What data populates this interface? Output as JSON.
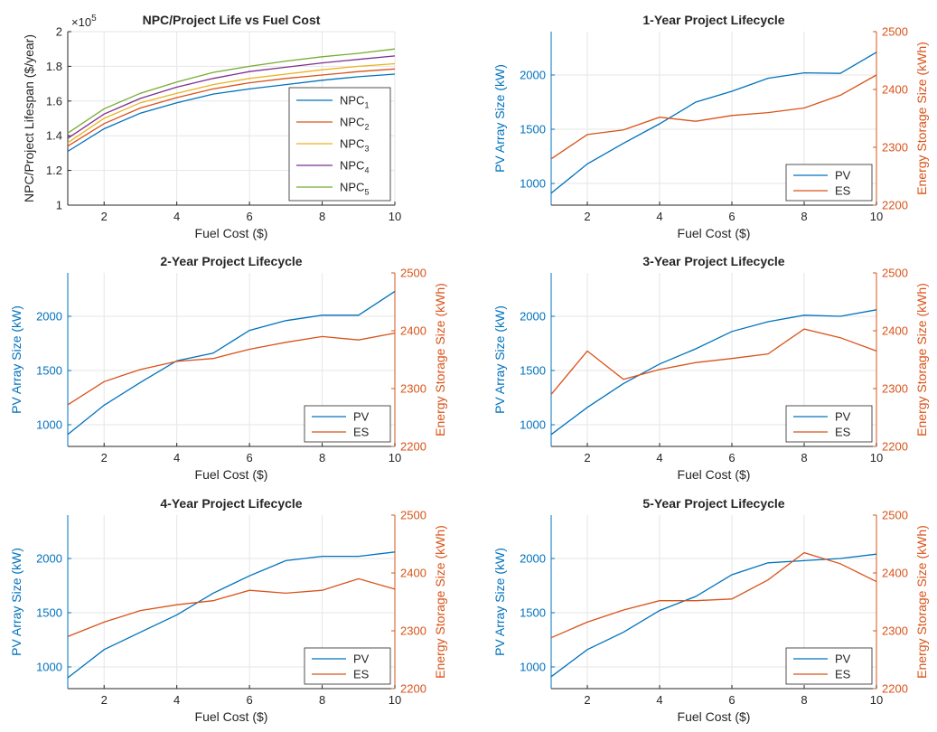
{
  "colors": {
    "pv": "#0072BD",
    "es": "#D95319",
    "npc": [
      "#0072BD",
      "#D95319",
      "#EDB120",
      "#7E2F8E",
      "#77AC30"
    ],
    "axis": "#262626",
    "grid": "#e6e6e6"
  },
  "chart_data": [
    {
      "type": "line",
      "title": "NPC/Project Life vs Fuel Cost",
      "xlabel": "Fuel Cost ($)",
      "ylabel": "NPC/Project Lifespan ($/year)",
      "exponent_label": "×10",
      "exponent_power": "5",
      "xlim": [
        1,
        10
      ],
      "ylim": [
        1,
        2
      ],
      "xticks": [
        2,
        4,
        6,
        8,
        10
      ],
      "yticks": [
        1,
        1.2,
        1.4,
        1.6,
        1.8,
        2
      ],
      "ytick_labels": [
        "1",
        "1.2",
        "1.4",
        "1.6",
        "1.8",
        "2"
      ],
      "grid": true,
      "legend_position": "bottom-right",
      "x": [
        1,
        2,
        3,
        4,
        5,
        6,
        7,
        8,
        9,
        10
      ],
      "series": [
        {
          "name": "NPC",
          "sub": "1",
          "values": [
            1.31,
            1.44,
            1.53,
            1.59,
            1.64,
            1.67,
            1.695,
            1.72,
            1.74,
            1.755
          ]
        },
        {
          "name": "NPC",
          "sub": "2",
          "values": [
            1.34,
            1.47,
            1.56,
            1.62,
            1.67,
            1.705,
            1.73,
            1.75,
            1.77,
            1.785
          ]
        },
        {
          "name": "NPC",
          "sub": "3",
          "values": [
            1.36,
            1.5,
            1.59,
            1.645,
            1.695,
            1.73,
            1.755,
            1.78,
            1.8,
            1.815
          ]
        },
        {
          "name": "NPC",
          "sub": "4",
          "values": [
            1.385,
            1.525,
            1.615,
            1.68,
            1.73,
            1.77,
            1.795,
            1.82,
            1.84,
            1.86
          ]
        },
        {
          "name": "NPC",
          "sub": "5",
          "values": [
            1.415,
            1.555,
            1.645,
            1.71,
            1.765,
            1.8,
            1.83,
            1.855,
            1.875,
            1.9
          ]
        }
      ]
    },
    {
      "type": "line",
      "title": "1-Year Project Lifecycle",
      "xlabel": "Fuel Cost ($)",
      "ylabel_left": "PV Array Size (kW)",
      "ylabel_right": "Energy Storage Size (kWh)",
      "xlim": [
        1,
        10
      ],
      "ylim_left": [
        800,
        2400
      ],
      "ylim_right": [
        2200,
        2500
      ],
      "xticks": [
        2,
        4,
        6,
        8,
        10
      ],
      "yticks_left": [
        1000,
        1500,
        2000
      ],
      "yticks_right": [
        2200,
        2300,
        2400,
        2500
      ],
      "grid": true,
      "legend_position": "bottom-right",
      "x": [
        1,
        2,
        3,
        4,
        5,
        6,
        7,
        8,
        9,
        10
      ],
      "series": [
        {
          "name": "PV",
          "axis": "left",
          "values": [
            910,
            1180,
            1370,
            1550,
            1750,
            1850,
            1970,
            2020,
            2015,
            2210
          ]
        },
        {
          "name": "ES",
          "axis": "right",
          "values": [
            2280,
            2322,
            2330,
            2352,
            2345,
            2355,
            2360,
            2368,
            2390,
            2425
          ]
        }
      ]
    },
    {
      "type": "line",
      "title": "2-Year Project Lifecycle",
      "xlabel": "Fuel Cost ($)",
      "ylabel_left": "PV Array Size (kW)",
      "ylabel_right": "Energy Storage Size (kWh)",
      "xlim": [
        1,
        10
      ],
      "ylim_left": [
        800,
        2400
      ],
      "ylim_right": [
        2200,
        2500
      ],
      "xticks": [
        2,
        4,
        6,
        8,
        10
      ],
      "yticks_left": [
        1000,
        1500,
        2000
      ],
      "yticks_right": [
        2200,
        2300,
        2400,
        2500
      ],
      "grid": true,
      "legend_position": "bottom-right",
      "x": [
        1,
        2,
        3,
        4,
        5,
        6,
        7,
        8,
        9,
        10
      ],
      "series": [
        {
          "name": "PV",
          "axis": "left",
          "values": [
            910,
            1180,
            1390,
            1590,
            1660,
            1870,
            1960,
            2010,
            2010,
            2230
          ]
        },
        {
          "name": "ES",
          "axis": "right",
          "values": [
            2272,
            2312,
            2333,
            2347,
            2352,
            2368,
            2380,
            2390,
            2384,
            2396
          ]
        }
      ]
    },
    {
      "type": "line",
      "title": "3-Year Project Lifecycle",
      "xlabel": "Fuel Cost ($)",
      "ylabel_left": "PV Array Size (kW)",
      "ylabel_right": "Energy Storage Size (kWh)",
      "xlim": [
        1,
        10
      ],
      "ylim_left": [
        800,
        2400
      ],
      "ylim_right": [
        2200,
        2500
      ],
      "xticks": [
        2,
        4,
        6,
        8,
        10
      ],
      "yticks_left": [
        1000,
        1500,
        2000
      ],
      "yticks_right": [
        2200,
        2300,
        2400,
        2500
      ],
      "grid": true,
      "legend_position": "bottom-right",
      "x": [
        1,
        2,
        3,
        4,
        5,
        6,
        7,
        8,
        9,
        10
      ],
      "series": [
        {
          "name": "PV",
          "axis": "left",
          "values": [
            910,
            1160,
            1380,
            1560,
            1700,
            1860,
            1950,
            2010,
            2000,
            2060
          ]
        },
        {
          "name": "ES",
          "axis": "right",
          "values": [
            2290,
            2365,
            2316,
            2333,
            2345,
            2352,
            2360,
            2403,
            2388,
            2365
          ]
        }
      ]
    },
    {
      "type": "line",
      "title": "4-Year Project Lifecycle",
      "xlabel": "Fuel Cost ($)",
      "ylabel_left": "PV Array Size (kW)",
      "ylabel_right": "Energy Storage Size (kWh)",
      "xlim": [
        1,
        10
      ],
      "ylim_left": [
        800,
        2400
      ],
      "ylim_right": [
        2200,
        2500
      ],
      "xticks": [
        2,
        4,
        6,
        8,
        10
      ],
      "yticks_left": [
        1000,
        1500,
        2000
      ],
      "yticks_right": [
        2200,
        2300,
        2400,
        2500
      ],
      "grid": true,
      "legend_position": "bottom-right",
      "x": [
        1,
        2,
        3,
        4,
        5,
        6,
        7,
        8,
        9,
        10
      ],
      "series": [
        {
          "name": "PV",
          "axis": "left",
          "values": [
            900,
            1160,
            1320,
            1480,
            1680,
            1840,
            1980,
            2020,
            2020,
            2060
          ]
        },
        {
          "name": "ES",
          "axis": "right",
          "values": [
            2290,
            2315,
            2335,
            2345,
            2352,
            2370,
            2365,
            2370,
            2390,
            2372
          ]
        }
      ]
    },
    {
      "type": "line",
      "title": "5-Year Project Lifecycle",
      "xlabel": "Fuel Cost ($)",
      "ylabel_left": "PV Array Size (kW)",
      "ylabel_right": "Energy Storage Size (kWh)",
      "xlim": [
        1,
        10
      ],
      "ylim_left": [
        800,
        2400
      ],
      "ylim_right": [
        2200,
        2500
      ],
      "xticks": [
        2,
        4,
        6,
        8,
        10
      ],
      "yticks_left": [
        1000,
        1500,
        2000
      ],
      "yticks_right": [
        2200,
        2300,
        2400,
        2500
      ],
      "grid": true,
      "legend_position": "bottom-right",
      "x": [
        1,
        2,
        3,
        4,
        5,
        6,
        7,
        8,
        9,
        10
      ],
      "series": [
        {
          "name": "PV",
          "axis": "left",
          "values": [
            910,
            1160,
            1320,
            1520,
            1650,
            1850,
            1960,
            1980,
            2000,
            2040
          ]
        },
        {
          "name": "ES",
          "axis": "right",
          "values": [
            2288,
            2315,
            2336,
            2352,
            2352,
            2355,
            2388,
            2435,
            2416,
            2385
          ]
        }
      ]
    }
  ]
}
